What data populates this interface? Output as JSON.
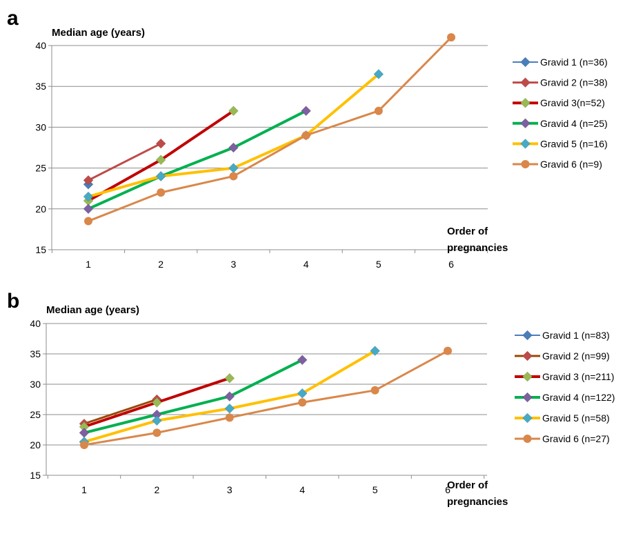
{
  "chart_data": [
    {
      "type": "line",
      "panel": "a",
      "title": "",
      "ylabel": "Median age (years)",
      "xlabel": [
        "Order of",
        "pregnancies"
      ],
      "x": [
        1,
        2,
        3,
        4,
        5,
        6
      ],
      "ylim": [
        15,
        40
      ],
      "yticks": [
        15,
        20,
        25,
        30,
        35,
        40
      ],
      "grid": "horizontal",
      "legend_position": "right",
      "series": [
        {
          "name": "Gravid 1 (n=36)",
          "color": "#4a7ebb",
          "marker": "diamond",
          "lineWidth": 2,
          "points": [
            [
              1,
              23
            ]
          ]
        },
        {
          "name": "Gravid 2 (n=38)",
          "color": "#be4b48",
          "marker": "diamond",
          "lineWidth": 3,
          "points": [
            [
              1,
              23.5
            ],
            [
              2,
              28
            ]
          ]
        },
        {
          "name": "Gravid 3(n=52)",
          "color": "#c00000",
          "marker": "diamond",
          "markerColor": "#98b954",
          "lineWidth": 4,
          "points": [
            [
              1,
              21
            ],
            [
              2,
              26
            ],
            [
              3,
              32
            ]
          ]
        },
        {
          "name": "Gravid 4 (n=25)",
          "color": "#00b050",
          "marker": "diamond",
          "markerColor": "#7d60a0",
          "lineWidth": 4,
          "points": [
            [
              1,
              20
            ],
            [
              2,
              24
            ],
            [
              3,
              27.5
            ],
            [
              4,
              32
            ]
          ]
        },
        {
          "name": "Gravid 5 (n=16)",
          "color": "#ffc000",
          "marker": "diamond",
          "markerColor": "#46aac5",
          "lineWidth": 4,
          "points": [
            [
              1,
              21.5
            ],
            [
              2,
              24
            ],
            [
              3,
              25
            ],
            [
              4,
              29
            ],
            [
              5,
              36.5
            ]
          ]
        },
        {
          "name": "Gravid 6 (n=9)",
          "color": "#d9874a",
          "marker": "circle",
          "lineWidth": 3,
          "points": [
            [
              1,
              18.5
            ],
            [
              2,
              22
            ],
            [
              3,
              24
            ],
            [
              4,
              29
            ],
            [
              5,
              32
            ],
            [
              6,
              41
            ]
          ]
        }
      ]
    },
    {
      "type": "line",
      "panel": "b",
      "title": "",
      "ylabel": "Median age (years)",
      "xlabel": [
        "Order of",
        "pregnancies"
      ],
      "x": [
        1,
        2,
        3,
        4,
        5,
        6
      ],
      "ylim": [
        15,
        40
      ],
      "yticks": [
        15,
        20,
        25,
        30,
        35,
        40
      ],
      "grid": "horizontal",
      "legend_position": "right",
      "series": [
        {
          "name": "Gravid 1 (n=83)",
          "color": "#4a7ebb",
          "marker": "diamond",
          "lineWidth": 2,
          "points": [
            [
              1,
              20.5
            ]
          ]
        },
        {
          "name": "Gravid 2 (n=99)",
          "color": "#984807",
          "marker": "diamond",
          "markerColor": "#be4b48",
          "lineWidth": 3,
          "points": [
            [
              1,
              23.5
            ],
            [
              2,
              27.5
            ]
          ]
        },
        {
          "name": "Gravid 3 (n=211)",
          "color": "#c00000",
          "marker": "diamond",
          "markerColor": "#98b954",
          "lineWidth": 4,
          "points": [
            [
              1,
              23
            ],
            [
              2,
              27
            ],
            [
              3,
              31
            ]
          ]
        },
        {
          "name": "Gravid 4 (n=122)",
          "color": "#00b050",
          "marker": "diamond",
          "markerColor": "#7d60a0",
          "lineWidth": 4,
          "points": [
            [
              1,
              22
            ],
            [
              2,
              25
            ],
            [
              3,
              28
            ],
            [
              4,
              34
            ]
          ]
        },
        {
          "name": "Gravid 5 (n=58)",
          "color": "#ffc000",
          "marker": "diamond",
          "markerColor": "#46aac5",
          "lineWidth": 4,
          "points": [
            [
              1,
              20.5
            ],
            [
              2,
              24
            ],
            [
              3,
              26
            ],
            [
              4,
              28.5
            ],
            [
              5,
              35.5
            ]
          ]
        },
        {
          "name": "Gravid 6 (n=27)",
          "color": "#d9874a",
          "marker": "circle",
          "lineWidth": 3,
          "points": [
            [
              1,
              20
            ],
            [
              2,
              22
            ],
            [
              3,
              24.5
            ],
            [
              4,
              27
            ],
            [
              5,
              29
            ],
            [
              6,
              35.5
            ]
          ]
        }
      ]
    }
  ]
}
